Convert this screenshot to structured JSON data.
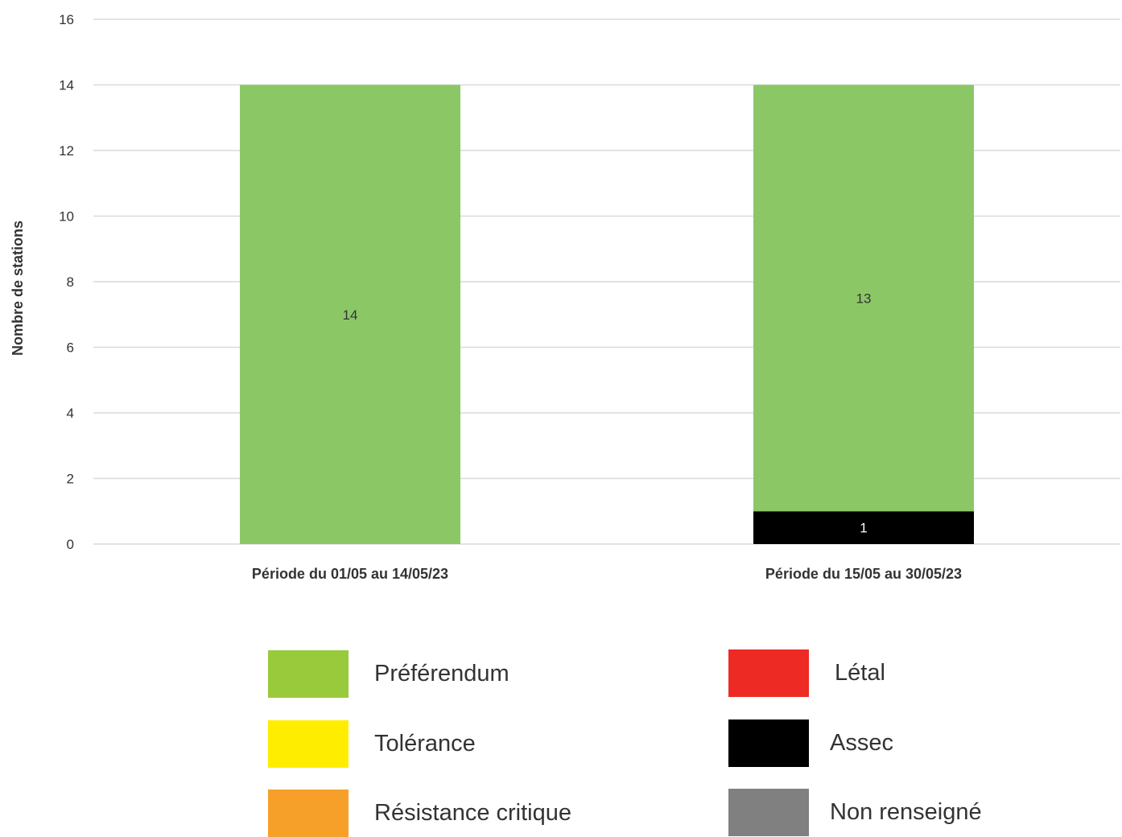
{
  "chart_data": {
    "type": "bar",
    "stacked": true,
    "title": "",
    "xlabel": "",
    "ylabel": "Nombre de stations",
    "ylim": [
      0,
      16
    ],
    "yticks": [
      0,
      2,
      4,
      6,
      8,
      10,
      12,
      14,
      16
    ],
    "grid": true,
    "legend_position": "bottom",
    "categories": [
      "Période du 01/05 au 14/05/23",
      "Période du 15/05 au 30/05/23"
    ],
    "series": [
      {
        "name": "Assec",
        "color": "#000000",
        "label_color": "#ffffff",
        "values": [
          0,
          1
        ]
      },
      {
        "name": "Préférendum",
        "color": "#8bc865",
        "label_color": "#333333",
        "values": [
          14,
          13
        ]
      },
      {
        "name": "Tolérance",
        "color": "#ffed00",
        "label_color": "#333333",
        "values": [
          0,
          0
        ]
      },
      {
        "name": "Résistance critique",
        "color": "#f6a02a",
        "label_color": "#333333",
        "values": [
          0,
          0
        ]
      },
      {
        "name": "Létal",
        "color": "#ee2a24",
        "label_color": "#ffffff",
        "values": [
          0,
          0
        ]
      },
      {
        "name": "Non renseigné",
        "color": "#808080",
        "label_color": "#ffffff",
        "values": [
          0,
          0
        ]
      }
    ]
  },
  "legend": {
    "items": [
      {
        "label": "Préférendum",
        "color": "#99ca3c"
      },
      {
        "label": "Tolérance",
        "color": "#ffed00"
      },
      {
        "label": "Résistance critique",
        "color": "#f6a02a"
      },
      {
        "label": "Létal",
        "color": "#ee2a24"
      },
      {
        "label": "Assec",
        "color": "#000000"
      },
      {
        "label": "Non renseigné",
        "color": "#808080"
      }
    ]
  }
}
